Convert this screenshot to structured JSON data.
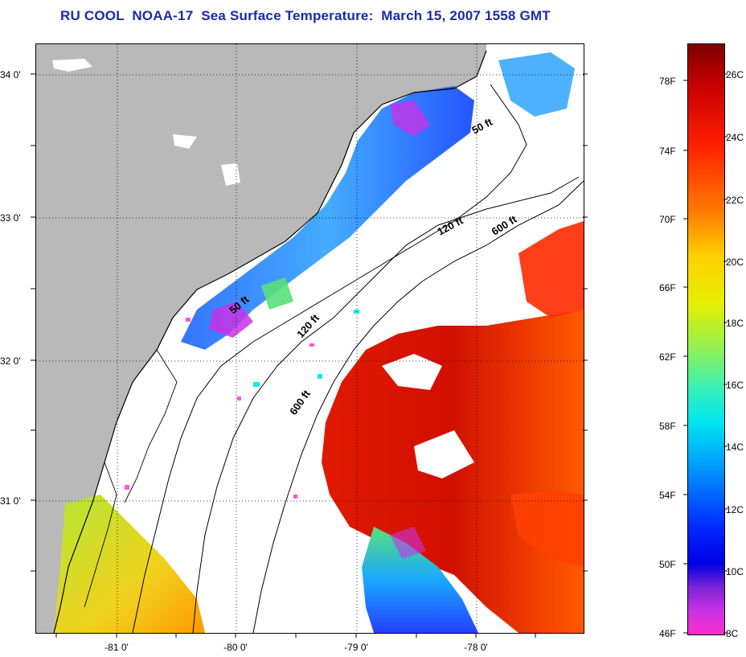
{
  "title": "RU COOL  NOAA-17  Sea Surface Temperature:  March 15, 2007 1558 GMT",
  "map": {
    "lat_labels": [
      "34 0'",
      "33 0'",
      "32 0'",
      "31 0'"
    ],
    "lon_labels": [
      "-81 0'",
      "-80 0'",
      "-79 0'",
      "-78 0'"
    ],
    "depth_contours": [
      "50 ft",
      "120 ft",
      "600 ft",
      "50 ft",
      "120 ft",
      "600 ft"
    ],
    "colors": {
      "land": "#b9b9b9",
      "cloud": "#ffffff",
      "coast": "#000000",
      "grid": "#000000"
    }
  },
  "colorbar": {
    "fahrenheit_labels": [
      "78F",
      "74F",
      "70F",
      "66F",
      "62F",
      "58F",
      "54F",
      "50F",
      "46F"
    ],
    "celsius_labels": [
      "26C",
      "24C",
      "22C",
      "20C",
      "18C",
      "16C",
      "14C",
      "12C",
      "10C",
      "8C"
    ],
    "gradient_top_to_bottom": [
      "#7f0000",
      "#c80000",
      "#ff1e00",
      "#ff7800",
      "#ffd000",
      "#e6f000",
      "#8cf05a",
      "#3cf0b4",
      "#00e6f0",
      "#0096ff",
      "#0028ff",
      "#0000e6",
      "#7a24d4",
      "#c832e6",
      "#ff2ecc"
    ]
  }
}
